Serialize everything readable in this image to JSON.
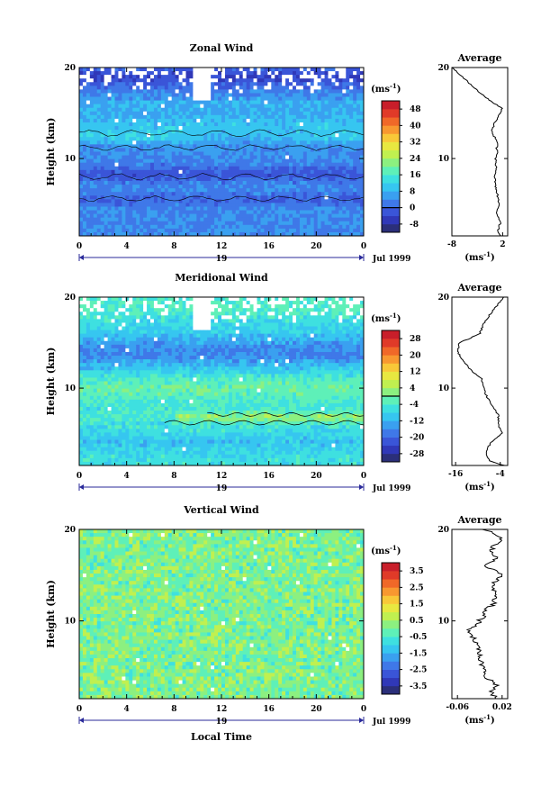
{
  "figure": {
    "x_axis_title": "Local Time",
    "date_label": "Jul 1999",
    "day_label": "19",
    "y_axis_title": "Height (km)",
    "average_title": "Average",
    "unit_label": "(ms",
    "unit_exp": "-1",
    "unit_close": ")"
  },
  "chart_data": [
    {
      "type": "heatmap",
      "title": "Zonal Wind",
      "xlabel": "",
      "ylabel": "Height (km)",
      "x_ticks": [
        "0",
        "4",
        "8",
        "12",
        "16",
        "20",
        "0"
      ],
      "y_ticks": [
        "20",
        "10"
      ],
      "x_range": [
        0,
        24
      ],
      "y_range": [
        1.5,
        20
      ],
      "colorbar": {
        "unit": "(ms-1)",
        "ticks": [
          "48",
          "40",
          "32",
          "24",
          "16",
          "8",
          "0",
          "-8"
        ],
        "range": [
          -12,
          52
        ],
        "zero_line": 0
      },
      "profile": {
        "title": "Average",
        "xlabel": "(ms-1)",
        "x_ticks": [
          "-8",
          "2"
        ],
        "y_ticks": [
          "20",
          "10"
        ],
        "x_range": [
          -8,
          3
        ],
        "height_km": [
          1.5,
          2,
          3,
          4,
          5,
          6,
          7,
          8,
          9,
          10,
          10.5,
          11,
          12,
          12.5,
          13,
          14,
          15,
          15.5,
          16,
          17,
          18,
          19,
          19.5,
          20
        ],
        "values": [
          1.5,
          1.0,
          1.6,
          0.8,
          1.2,
          1.0,
          0.6,
          0.4,
          0.7,
          0.6,
          1.0,
          0.8,
          1.0,
          0.2,
          -0.2,
          0.5,
          1.5,
          2.0,
          0.5,
          -2.0,
          -4.0,
          -6.0,
          -7.0,
          -8.0
        ]
      }
    },
    {
      "type": "heatmap",
      "title": "Meridional Wind",
      "xlabel": "",
      "ylabel": "Height (km)",
      "x_ticks": [
        "0",
        "4",
        "8",
        "12",
        "16",
        "20",
        "0"
      ],
      "y_ticks": [
        "20",
        "10"
      ],
      "x_range": [
        0,
        24
      ],
      "y_range": [
        1.5,
        20
      ],
      "colorbar": {
        "unit": "(ms-1)",
        "ticks": [
          "28",
          "20",
          "12",
          "4",
          "-4",
          "-12",
          "-20",
          "-28"
        ],
        "range": [
          -32,
          32
        ],
        "zero_line": 0
      },
      "profile": {
        "title": "Average",
        "xlabel": "(ms-1)",
        "x_ticks": [
          "-16",
          "-4"
        ],
        "y_ticks": [
          "20",
          "10"
        ],
        "x_range": [
          -17,
          -2
        ],
        "height_km": [
          1.5,
          2,
          3,
          4,
          5,
          6,
          7,
          8,
          9,
          10,
          11,
          12,
          13,
          14,
          15,
          15.5,
          16,
          17,
          18,
          19,
          20
        ],
        "values": [
          -3.0,
          -7.0,
          -8.0,
          -6.5,
          -3.5,
          -4.5,
          -4.5,
          -6.0,
          -7.5,
          -8.5,
          -9.0,
          -12.0,
          -14.0,
          -15.5,
          -15.0,
          -12.0,
          -9.5,
          -8.5,
          -7.0,
          -5.0,
          -3.0
        ]
      }
    },
    {
      "type": "heatmap",
      "title": "Vertical Wind",
      "xlabel": "Local Time",
      "ylabel": "Height (km)",
      "x_ticks": [
        "0",
        "4",
        "8",
        "12",
        "16",
        "20",
        "0"
      ],
      "y_ticks": [
        "20",
        "10"
      ],
      "x_range": [
        0,
        24
      ],
      "y_range": [
        1.5,
        20
      ],
      "colorbar": {
        "unit": "(ms-1)",
        "ticks": [
          "3.5",
          "2.5",
          "1.5",
          "0.5",
          "-0.5",
          "-1.5",
          "-2.5",
          "-3.5"
        ],
        "range": [
          -4,
          4
        ],
        "zero_line": null
      },
      "profile": {
        "title": "Average",
        "xlabel": "(ms-1)",
        "x_ticks": [
          "-0.06",
          "0.02"
        ],
        "y_ticks": [
          "20",
          "10"
        ],
        "x_range": [
          -0.07,
          0.03
        ],
        "height_km": [
          1.5,
          2,
          3,
          4,
          5,
          6,
          7,
          8,
          9,
          10,
          11,
          12,
          13,
          14,
          15,
          16,
          17,
          18,
          19,
          20
        ],
        "values": [
          0.01,
          0.0,
          0.01,
          -0.01,
          -0.015,
          -0.02,
          -0.025,
          -0.03,
          -0.04,
          -0.02,
          -0.01,
          0.005,
          0.01,
          0.0,
          0.02,
          -0.01,
          0.01,
          0.0,
          0.02,
          -0.01
        ]
      }
    }
  ]
}
